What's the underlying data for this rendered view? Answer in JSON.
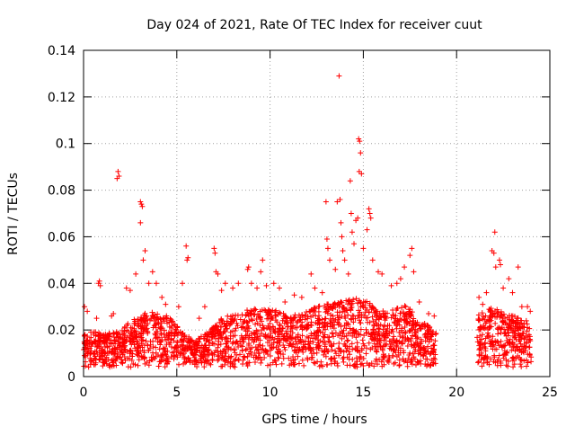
{
  "chart_data": {
    "type": "scatter",
    "title": "Day 024 of 2021, Rate Of TEC Index for receiver cuut",
    "xlabel": "GPS time / hours",
    "ylabel": "ROTI / TECUs",
    "xlim": [
      0,
      25
    ],
    "ylim": [
      0,
      0.14
    ],
    "grid": true,
    "marker": "+",
    "marker_color": "#ff0000",
    "x_ticks": [
      0,
      5,
      10,
      15,
      20,
      25
    ],
    "x_tick_labels": [
      "0",
      "5",
      "10",
      "15",
      "20",
      "25"
    ],
    "y_ticks": [
      0,
      0.02,
      0.04,
      0.06,
      0.08,
      0.1,
      0.12,
      0.14
    ],
    "y_tick_labels": [
      "0",
      "0.02",
      "0.04",
      "0.06",
      "0.08",
      "0.1",
      "0.12",
      "0.14"
    ],
    "data_gap_hours": [
      18.9,
      21.1
    ],
    "series": [
      {
        "name": "ROTI",
        "points": [
          [
            0.05,
            0.03
          ],
          [
            0.2,
            0.028
          ],
          [
            0.7,
            0.025
          ],
          [
            0.8,
            0.04
          ],
          [
            0.85,
            0.041
          ],
          [
            0.9,
            0.039
          ],
          [
            1.5,
            0.026
          ],
          [
            1.6,
            0.027
          ],
          [
            1.8,
            0.085
          ],
          [
            1.85,
            0.088
          ],
          [
            1.9,
            0.086
          ],
          [
            2.3,
            0.038
          ],
          [
            2.5,
            0.037
          ],
          [
            2.8,
            0.044
          ],
          [
            3.05,
            0.075
          ],
          [
            3.1,
            0.074
          ],
          [
            3.15,
            0.073
          ],
          [
            3.05,
            0.066
          ],
          [
            3.2,
            0.05
          ],
          [
            3.3,
            0.054
          ],
          [
            3.5,
            0.04
          ],
          [
            3.7,
            0.045
          ],
          [
            3.9,
            0.04
          ],
          [
            4.2,
            0.034
          ],
          [
            4.4,
            0.031
          ],
          [
            5.1,
            0.03
          ],
          [
            5.3,
            0.04
          ],
          [
            5.5,
            0.056
          ],
          [
            5.55,
            0.05
          ],
          [
            5.6,
            0.051
          ],
          [
            6.2,
            0.025
          ],
          [
            6.5,
            0.03
          ],
          [
            7.0,
            0.055
          ],
          [
            7.05,
            0.053
          ],
          [
            7.1,
            0.045
          ],
          [
            7.2,
            0.044
          ],
          [
            7.4,
            0.037
          ],
          [
            7.6,
            0.04
          ],
          [
            8.0,
            0.038
          ],
          [
            8.3,
            0.04
          ],
          [
            8.8,
            0.046
          ],
          [
            8.85,
            0.047
          ],
          [
            9.0,
            0.04
          ],
          [
            9.3,
            0.038
          ],
          [
            9.5,
            0.045
          ],
          [
            9.6,
            0.05
          ],
          [
            9.8,
            0.039
          ],
          [
            10.2,
            0.04
          ],
          [
            10.5,
            0.038
          ],
          [
            10.8,
            0.032
          ],
          [
            11.3,
            0.035
          ],
          [
            11.7,
            0.034
          ],
          [
            12.2,
            0.044
          ],
          [
            12.4,
            0.038
          ],
          [
            12.8,
            0.036
          ],
          [
            13.0,
            0.075
          ],
          [
            13.05,
            0.059
          ],
          [
            13.1,
            0.055
          ],
          [
            13.2,
            0.05
          ],
          [
            13.5,
            0.046
          ],
          [
            13.6,
            0.075
          ],
          [
            13.7,
            0.129
          ],
          [
            13.75,
            0.076
          ],
          [
            13.8,
            0.066
          ],
          [
            13.85,
            0.06
          ],
          [
            13.9,
            0.054
          ],
          [
            14.0,
            0.05
          ],
          [
            14.2,
            0.044
          ],
          [
            14.3,
            0.084
          ],
          [
            14.35,
            0.07
          ],
          [
            14.4,
            0.062
          ],
          [
            14.5,
            0.057
          ],
          [
            14.6,
            0.067
          ],
          [
            14.7,
            0.068
          ],
          [
            14.75,
            0.102
          ],
          [
            14.8,
            0.101
          ],
          [
            14.85,
            0.096
          ],
          [
            14.78,
            0.088
          ],
          [
            14.9,
            0.087
          ],
          [
            15.0,
            0.055
          ],
          [
            15.2,
            0.063
          ],
          [
            15.3,
            0.072
          ],
          [
            15.35,
            0.07
          ],
          [
            15.4,
            0.068
          ],
          [
            15.5,
            0.05
          ],
          [
            15.8,
            0.045
          ],
          [
            16.0,
            0.044
          ],
          [
            16.5,
            0.039
          ],
          [
            16.8,
            0.04
          ],
          [
            17.0,
            0.042
          ],
          [
            17.2,
            0.047
          ],
          [
            17.5,
            0.052
          ],
          [
            17.6,
            0.055
          ],
          [
            17.7,
            0.045
          ],
          [
            18.0,
            0.032
          ],
          [
            18.5,
            0.027
          ],
          [
            18.8,
            0.026
          ],
          [
            21.2,
            0.034
          ],
          [
            21.4,
            0.031
          ],
          [
            21.6,
            0.036
          ],
          [
            21.9,
            0.054
          ],
          [
            22.0,
            0.053
          ],
          [
            22.05,
            0.062
          ],
          [
            22.1,
            0.047
          ],
          [
            22.3,
            0.05
          ],
          [
            22.35,
            0.048
          ],
          [
            22.5,
            0.038
          ],
          [
            22.8,
            0.042
          ],
          [
            23.0,
            0.036
          ],
          [
            23.3,
            0.047
          ],
          [
            23.5,
            0.03
          ],
          [
            23.8,
            0.03
          ],
          [
            23.95,
            0.028
          ]
        ]
      }
    ],
    "band_profile": [
      [
        0.0,
        0.018
      ],
      [
        0.5,
        0.02
      ],
      [
        1.0,
        0.018
      ],
      [
        1.5,
        0.019
      ],
      [
        2.0,
        0.02
      ],
      [
        2.5,
        0.024
      ],
      [
        3.0,
        0.026
      ],
      [
        3.5,
        0.028
      ],
      [
        4.0,
        0.027
      ],
      [
        4.5,
        0.026
      ],
      [
        5.0,
        0.022
      ],
      [
        5.5,
        0.018
      ],
      [
        6.0,
        0.016
      ],
      [
        6.5,
        0.018
      ],
      [
        7.0,
        0.022
      ],
      [
        7.5,
        0.026
      ],
      [
        8.0,
        0.027
      ],
      [
        8.5,
        0.028
      ],
      [
        9.0,
        0.029
      ],
      [
        9.5,
        0.03
      ],
      [
        10.0,
        0.029
      ],
      [
        10.5,
        0.028
      ],
      [
        11.0,
        0.026
      ],
      [
        11.5,
        0.027
      ],
      [
        12.0,
        0.028
      ],
      [
        12.5,
        0.03
      ],
      [
        13.0,
        0.031
      ],
      [
        13.5,
        0.032
      ],
      [
        14.0,
        0.033
      ],
      [
        14.5,
        0.034
      ],
      [
        15.0,
        0.033
      ],
      [
        15.5,
        0.031
      ],
      [
        16.0,
        0.028
      ],
      [
        16.5,
        0.029
      ],
      [
        17.0,
        0.031
      ],
      [
        17.5,
        0.03
      ],
      [
        18.0,
        0.024
      ],
      [
        18.5,
        0.022
      ],
      [
        18.9,
        0.021
      ],
      [
        21.1,
        0.026
      ],
      [
        21.5,
        0.028
      ],
      [
        22.0,
        0.03
      ],
      [
        22.5,
        0.029
      ],
      [
        23.0,
        0.027
      ],
      [
        23.5,
        0.025
      ],
      [
        24.0,
        0.024
      ]
    ]
  }
}
